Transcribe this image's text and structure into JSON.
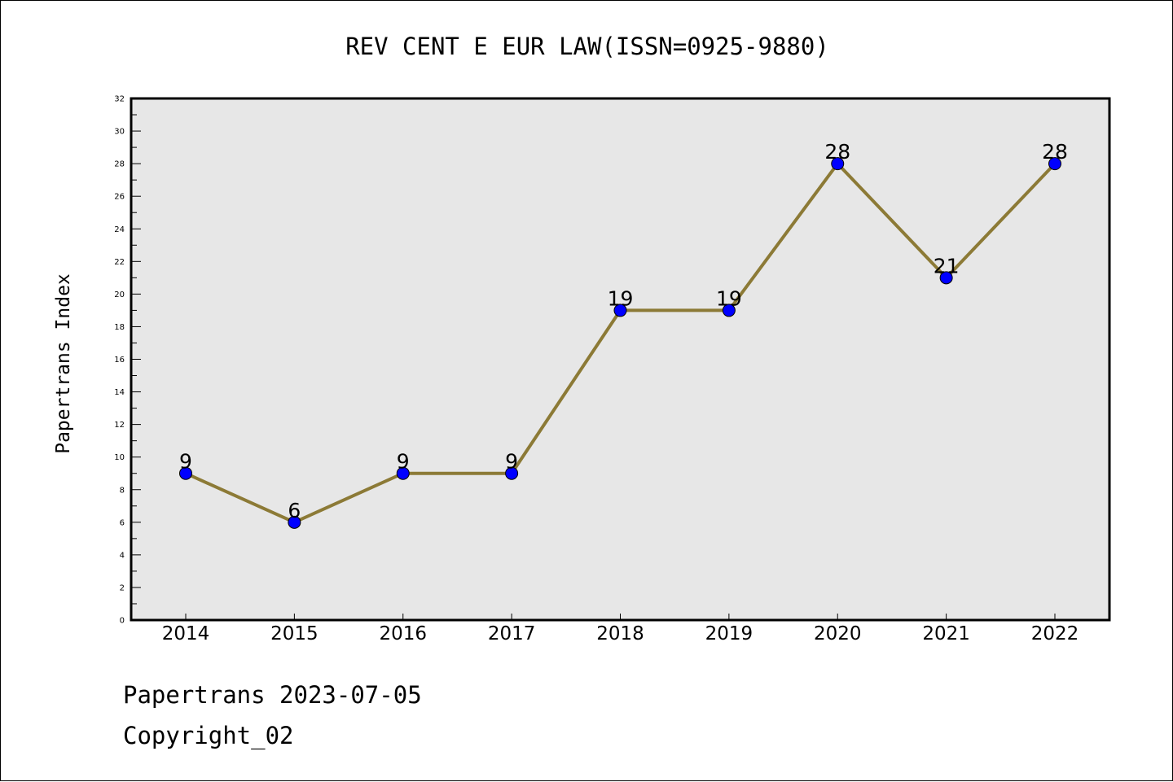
{
  "chart_data": {
    "type": "line",
    "title": "REV CENT E EUR LAW(ISSN=0925-9880)",
    "xlabel": "",
    "ylabel": "Papertrans Index",
    "categories": [
      "2014",
      "2015",
      "2016",
      "2017",
      "2018",
      "2019",
      "2020",
      "2021",
      "2022"
    ],
    "series": [
      {
        "values": [
          9,
          6,
          9,
          9,
          19,
          19,
          28,
          21,
          28
        ]
      }
    ],
    "ylim": [
      0,
      32
    ],
    "y_major_ticks": [
      0,
      2,
      4,
      6,
      8,
      10,
      12,
      14,
      16,
      18,
      20,
      22,
      24,
      26,
      28,
      30,
      32
    ],
    "grid": false,
    "legend": "none",
    "data_labels": true,
    "colors": {
      "line": "#8c7a36",
      "marker": "#0000ff",
      "plot_bg": "#e7e7e7"
    }
  },
  "footer": {
    "date_text": "Papertrans 2023-07-05",
    "copyright_text": "Copyright_02"
  }
}
